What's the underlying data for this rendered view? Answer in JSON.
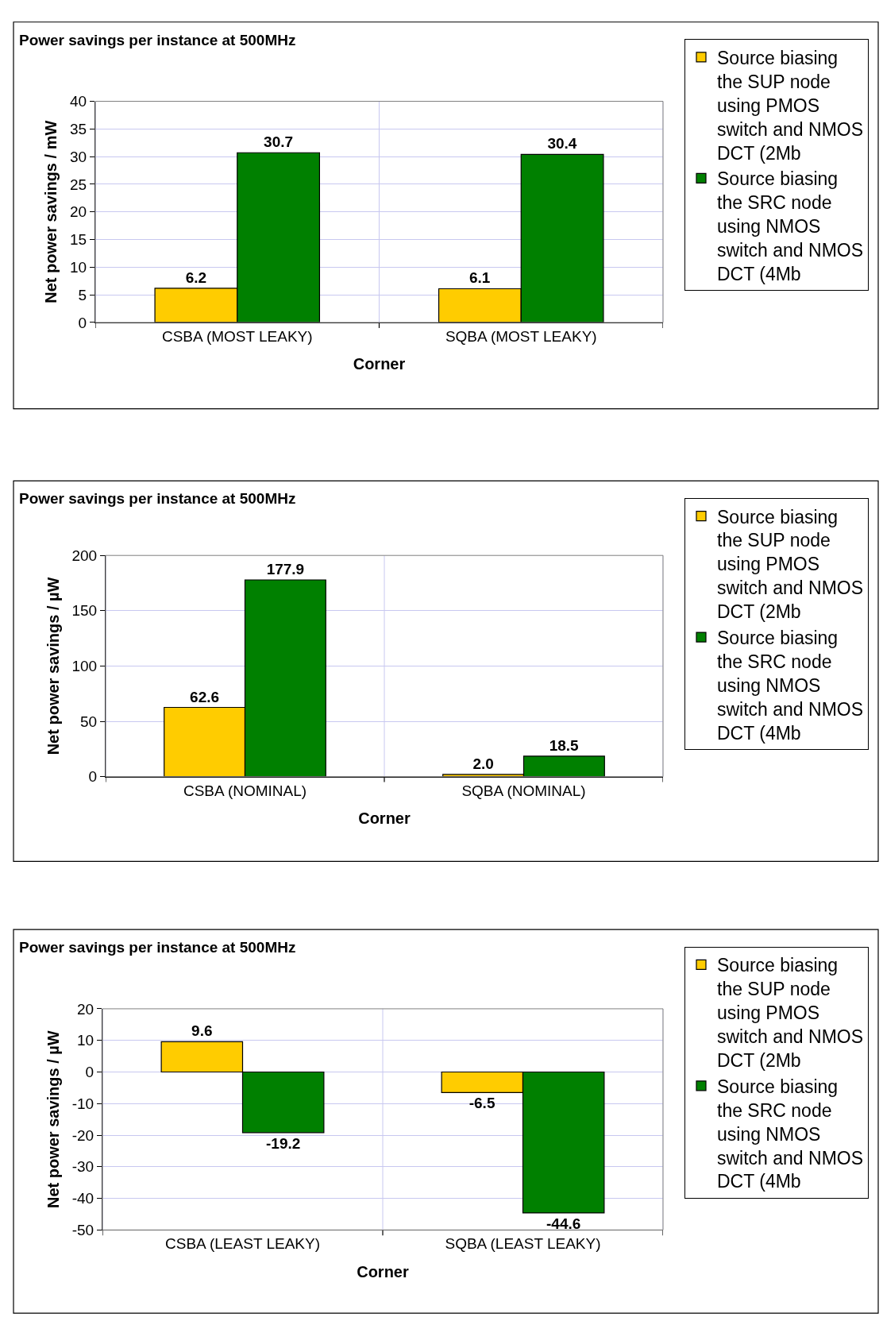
{
  "chart_data": [
    {
      "type": "bar",
      "title": "Power savings per instance at 500MHz",
      "xlabel": "Corner",
      "ylabel": "Net power savings / mW",
      "categories": [
        "CSBA (MOST LEAKY)",
        "SQBA (MOST LEAKY)"
      ],
      "series": [
        {
          "name": "Source biasing the SUP node using PMOS switch and NMOS DCT (2Mb",
          "color": "#ffcc00",
          "values": [
            6.2,
            6.1
          ],
          "value_labels": [
            "6.2",
            "6.1"
          ]
        },
        {
          "name": "Source biasing the SRC node using NMOS switch and NMOS DCT (4Mb",
          "color": "#008000",
          "values": [
            30.7,
            30.4
          ],
          "value_labels": [
            "30.7",
            "30.4"
          ]
        }
      ],
      "ylim": [
        0,
        40
      ],
      "yticks": [
        0,
        5,
        10,
        15,
        20,
        25,
        30,
        35,
        40
      ],
      "grid": true,
      "legend": "right"
    },
    {
      "type": "bar",
      "title": "Power savings per instance at 500MHz",
      "xlabel": "Corner",
      "ylabel": "Net power savings / µW",
      "categories": [
        "CSBA (NOMINAL)",
        "SQBA (NOMINAL)"
      ],
      "series": [
        {
          "name": "Source biasing the SUP node using PMOS switch and NMOS DCT (2Mb",
          "color": "#ffcc00",
          "values": [
            62.6,
            2.0
          ],
          "value_labels": [
            "62.6",
            "2.0"
          ]
        },
        {
          "name": "Source biasing the SRC node using NMOS switch and NMOS DCT (4Mb",
          "color": "#008000",
          "values": [
            177.9,
            18.5
          ],
          "value_labels": [
            "177.9",
            "18.5"
          ]
        }
      ],
      "ylim": [
        0,
        200
      ],
      "yticks": [
        0,
        50,
        100,
        150,
        200
      ],
      "grid": true,
      "legend": "right"
    },
    {
      "type": "bar",
      "title": "Power savings per instance at 500MHz",
      "xlabel": "Corner",
      "ylabel": "Net power savings / µW",
      "categories": [
        "CSBA (LEAST LEAKY)",
        "SQBA (LEAST LEAKY)"
      ],
      "series": [
        {
          "name": "Source biasing the SUP node using PMOS switch and NMOS DCT (2Mb",
          "color": "#ffcc00",
          "values": [
            9.6,
            -6.5
          ],
          "value_labels": [
            "9.6",
            "-6.5"
          ]
        },
        {
          "name": "Source biasing the SRC node using NMOS switch and NMOS DCT (4Mb",
          "color": "#008000",
          "values": [
            -19.2,
            -44.6
          ],
          "value_labels": [
            "-19.2",
            "-44.6"
          ]
        }
      ],
      "ylim": [
        -50,
        20
      ],
      "yticks": [
        -50,
        -40,
        -30,
        -20,
        -10,
        0,
        10,
        20
      ],
      "grid": true,
      "legend": "right"
    }
  ]
}
